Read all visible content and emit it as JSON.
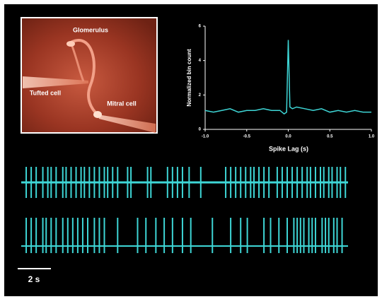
{
  "image": {
    "labels": [
      "Glomerulus",
      "Tufted cell",
      "Mitral cell"
    ]
  },
  "chart_data": [
    {
      "type": "line",
      "xlabel": "Spike Lag (s)",
      "ylabel": "Normalized bin count",
      "x": [
        -1,
        -0.9,
        -0.8,
        -0.7,
        -0.6,
        -0.5,
        -0.4,
        -0.3,
        -0.2,
        -0.1,
        -0.05,
        -0.02,
        0,
        0.02,
        0.05,
        0.1,
        0.2,
        0.3,
        0.4,
        0.5,
        0.6,
        0.7,
        0.8,
        0.9,
        1
      ],
      "series": [
        {
          "color": "#3ed6d6",
          "values": [
            1.1,
            1.0,
            1.1,
            1.2,
            1.0,
            1.1,
            1.1,
            1.2,
            1.1,
            1.1,
            0.9,
            1.0,
            5.2,
            1.3,
            1.2,
            1.3,
            1.2,
            1.1,
            1.2,
            1.0,
            1.1,
            1.0,
            1.1,
            1.0,
            1.0
          ]
        }
      ],
      "xlim": [
        -1,
        1
      ],
      "xticks": [
        {
          "value": -1,
          "label": "-1.0"
        },
        {
          "value": -0.5,
          "label": "-0.5"
        },
        {
          "value": 0,
          "label": "0.0"
        },
        {
          "value": 0.5,
          "label": "0.5"
        },
        {
          "value": 1,
          "label": "1.0"
        }
      ],
      "ylim": [
        0,
        6
      ],
      "yticks": [
        0,
        2,
        4,
        6
      ]
    },
    {
      "type": "spikes",
      "scale_bar": {
        "value": 2,
        "label": "2 s"
      },
      "series": [
        {
          "color": "#3ed6d6",
          "spike_times": [
            0.3,
            0.6,
            0.9,
            1.3,
            1.6,
            1.8,
            2.1,
            2.5,
            2.7,
            3.0,
            3.3,
            3.6,
            3.8,
            4.1,
            4.4,
            4.7,
            5.0,
            5.2,
            5.5,
            5.8,
            6.4,
            6.6,
            7.6,
            7.8,
            8.8,
            9.1,
            9.4,
            9.7,
            10.1,
            10.8,
            12.3,
            12.6,
            12.9,
            13.2,
            13.5,
            13.8,
            14.0,
            14.3,
            14.6,
            14.9,
            15.4,
            15.7,
            16.0,
            16.3,
            16.6,
            16.9,
            17.2,
            17.4,
            17.7,
            18.0,
            18.2,
            18.5,
            18.7,
            19.0,
            19.2,
            19.5
          ]
        },
        {
          "color": "#3ed6d6",
          "spike_times": [
            0.3,
            0.6,
            0.9,
            1.3,
            1.5,
            1.8,
            2.1,
            2.5,
            2.8,
            3.1,
            3.4,
            3.7,
            4.0,
            4.4,
            4.7,
            5.0,
            5.8,
            7.0,
            7.5,
            8.1,
            8.6,
            9.1,
            9.7,
            10.2,
            11.5,
            12.6,
            13.2,
            13.6,
            14.6,
            15.0,
            15.5,
            16.0,
            16.4,
            16.6,
            16.8,
            17.0,
            17.3,
            17.5,
            17.7,
            18.1,
            18.3,
            18.5,
            18.8,
            19.0,
            19.3
          ]
        }
      ]
    }
  ]
}
